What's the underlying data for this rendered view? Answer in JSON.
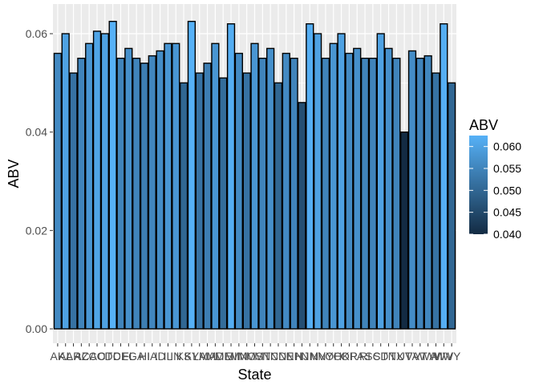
{
  "chart_data": {
    "type": "bar",
    "xlabel": "State",
    "ylabel": "ABV",
    "ylim": [
      0,
      0.065
    ],
    "yticks": [
      "0.00",
      "0.02",
      "0.04",
      "0.06"
    ],
    "ytick_values": [
      0,
      0.02,
      0.04,
      0.06
    ],
    "grid": true,
    "categories": [
      "AK",
      "AL",
      "AR",
      "AZ",
      "CA",
      "CO",
      "CT",
      "DC",
      "DE",
      "FL",
      "GA",
      "HI",
      "IA",
      "ID",
      "IL",
      "IN",
      "KS",
      "KY",
      "LA",
      "MA",
      "MD",
      "ME",
      "MI",
      "MN",
      "MO",
      "MS",
      "MT",
      "NC",
      "ND",
      "NE",
      "NH",
      "NJ",
      "NM",
      "NV",
      "NY",
      "OH",
      "OK",
      "OR",
      "PA",
      "RI",
      "SC",
      "SD",
      "TN",
      "TX",
      "UT",
      "VA",
      "VT",
      "WA",
      "WI",
      "WV",
      "WY"
    ],
    "values": [
      0.056,
      0.06,
      0.052,
      0.055,
      0.058,
      0.0605,
      0.06,
      0.0625,
      0.055,
      0.057,
      0.055,
      0.054,
      0.0555,
      0.0565,
      0.058,
      0.058,
      0.05,
      0.0625,
      0.052,
      0.054,
      0.058,
      0.051,
      0.062,
      0.056,
      0.052,
      0.058,
      0.055,
      0.057,
      0.05,
      0.056,
      0.055,
      0.046,
      0.062,
      0.06,
      0.055,
      0.058,
      0.06,
      0.056,
      0.057,
      0.055,
      0.055,
      0.06,
      0.057,
      0.055,
      0.04,
      0.0565,
      0.055,
      0.0555,
      0.052,
      0.062,
      0.05
    ],
    "legend": {
      "title": "ABV",
      "position": "right",
      "labels": [
        "0.060",
        "0.055",
        "0.050",
        "0.045",
        "0.040"
      ],
      "label_values": [
        0.06,
        0.055,
        0.05,
        0.045,
        0.04
      ],
      "range": [
        0.04,
        0.0625
      ],
      "color_low": "#132B43",
      "color_high": "#56B1F7"
    },
    "panel_background": "#EBEBEB",
    "grid_color": "#FFFFFF",
    "bar_outline": "#000000"
  }
}
